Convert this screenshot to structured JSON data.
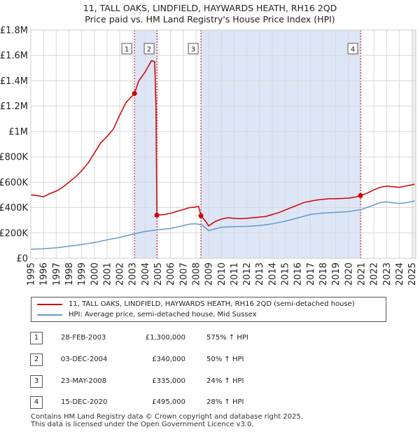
{
  "title_line1": "11, TALL OAKS, LINDFIELD, HAYWARDS HEATH, RH16 2QD",
  "title_line2": "Price paid vs. HM Land Registry's House Price Index (HPI)",
  "chart_data": {
    "type": "line",
    "title": "11, TALL OAKS, LINDFIELD, HAYWARDS HEATH, RH16 2QD",
    "subtitle": "Price paid vs. HM Land Registry's House Price Index (HPI)",
    "xlim": [
      1995,
      2025.3
    ],
    "ylim": [
      0,
      1800000
    ],
    "x_ticks": [
      "1995",
      "1996",
      "1997",
      "1998",
      "1999",
      "2000",
      "2001",
      "2002",
      "2003",
      "2004",
      "2005",
      "2006",
      "2007",
      "2008",
      "2009",
      "2010",
      "2011",
      "2012",
      "2013",
      "2014",
      "2015",
      "2016",
      "2017",
      "2018",
      "2019",
      "2020",
      "2021",
      "2022",
      "2023",
      "2024",
      "2025"
    ],
    "y_ticks": [
      {
        "value": 0,
        "label": "£0"
      },
      {
        "value": 200000,
        "label": "£200K"
      },
      {
        "value": 400000,
        "label": "£400K"
      },
      {
        "value": 600000,
        "label": "£600K"
      },
      {
        "value": 800000,
        "label": "£800K"
      },
      {
        "value": 1000000,
        "label": "£1M"
      },
      {
        "value": 1200000,
        "label": "£1.2M"
      },
      {
        "value": 1400000,
        "label": "£1.4M"
      },
      {
        "value": 1600000,
        "label": "£1.6M"
      },
      {
        "value": 1800000,
        "label": "£1.8M"
      }
    ],
    "grid": true,
    "series": [
      {
        "name": "11, TALL OAKS, LINDFIELD, HAYWARDS HEATH, RH16 2QD (semi-detached house)",
        "color": "#cc0000",
        "points": [
          [
            1995.0,
            500000
          ],
          [
            1995.5,
            495000
          ],
          [
            1996.0,
            485000
          ],
          [
            1996.5,
            510000
          ],
          [
            1997.0,
            530000
          ],
          [
            1997.5,
            560000
          ],
          [
            1998.0,
            600000
          ],
          [
            1998.5,
            640000
          ],
          [
            1999.0,
            690000
          ],
          [
            1999.5,
            750000
          ],
          [
            2000.0,
            830000
          ],
          [
            2000.5,
            910000
          ],
          [
            2001.0,
            960000
          ],
          [
            2001.5,
            1020000
          ],
          [
            2002.0,
            1130000
          ],
          [
            2002.5,
            1230000
          ],
          [
            2003.16,
            1300000
          ],
          [
            2003.5,
            1400000
          ],
          [
            2004.0,
            1470000
          ],
          [
            2004.5,
            1560000
          ],
          [
            2004.75,
            1550000
          ],
          [
            2004.85,
            1200000
          ],
          [
            2004.92,
            340000
          ],
          [
            2005.5,
            345000
          ],
          [
            2006.0,
            355000
          ],
          [
            2006.5,
            370000
          ],
          [
            2007.0,
            385000
          ],
          [
            2007.5,
            400000
          ],
          [
            2008.0,
            405000
          ],
          [
            2008.2,
            410000
          ],
          [
            2008.39,
            335000
          ],
          [
            2008.7,
            300000
          ],
          [
            2009.0,
            255000
          ],
          [
            2009.5,
            290000
          ],
          [
            2010.0,
            310000
          ],
          [
            2010.5,
            320000
          ],
          [
            2011.0,
            315000
          ],
          [
            2011.5,
            312000
          ],
          [
            2012.0,
            315000
          ],
          [
            2012.5,
            320000
          ],
          [
            2013.0,
            325000
          ],
          [
            2013.5,
            330000
          ],
          [
            2014.0,
            345000
          ],
          [
            2014.5,
            360000
          ],
          [
            2015.0,
            380000
          ],
          [
            2015.5,
            400000
          ],
          [
            2016.0,
            420000
          ],
          [
            2016.5,
            440000
          ],
          [
            2017.0,
            450000
          ],
          [
            2017.5,
            460000
          ],
          [
            2018.0,
            465000
          ],
          [
            2018.5,
            470000
          ],
          [
            2019.0,
            470000
          ],
          [
            2019.5,
            472000
          ],
          [
            2020.0,
            475000
          ],
          [
            2020.5,
            482000
          ],
          [
            2020.95,
            495000
          ],
          [
            2021.5,
            515000
          ],
          [
            2022.0,
            540000
          ],
          [
            2022.5,
            560000
          ],
          [
            2023.0,
            570000
          ],
          [
            2023.5,
            565000
          ],
          [
            2024.0,
            560000
          ],
          [
            2024.5,
            570000
          ],
          [
            2025.0,
            580000
          ],
          [
            2025.2,
            585000
          ]
        ]
      },
      {
        "name": "HPI: Average price, semi-detached house, Mid Sussex",
        "color": "#6699cc",
        "points": [
          [
            1995.0,
            72000
          ],
          [
            1996.0,
            75000
          ],
          [
            1997.0,
            83000
          ],
          [
            1998.0,
            95000
          ],
          [
            1999.0,
            108000
          ],
          [
            2000.0,
            125000
          ],
          [
            2001.0,
            145000
          ],
          [
            2002.0,
            165000
          ],
          [
            2003.0,
            190000
          ],
          [
            2004.0,
            212000
          ],
          [
            2005.0,
            225000
          ],
          [
            2006.0,
            235000
          ],
          [
            2007.0,
            258000
          ],
          [
            2007.5,
            270000
          ],
          [
            2008.0,
            272000
          ],
          [
            2008.5,
            262000
          ],
          [
            2009.0,
            218000
          ],
          [
            2009.5,
            232000
          ],
          [
            2010.0,
            245000
          ],
          [
            2011.0,
            250000
          ],
          [
            2012.0,
            252000
          ],
          [
            2013.0,
            258000
          ],
          [
            2014.0,
            272000
          ],
          [
            2015.0,
            292000
          ],
          [
            2016.0,
            318000
          ],
          [
            2017.0,
            345000
          ],
          [
            2018.0,
            358000
          ],
          [
            2019.0,
            362000
          ],
          [
            2020.0,
            368000
          ],
          [
            2021.0,
            385000
          ],
          [
            2022.0,
            420000
          ],
          [
            2022.5,
            440000
          ],
          [
            2023.0,
            445000
          ],
          [
            2023.5,
            438000
          ],
          [
            2024.0,
            433000
          ],
          [
            2024.5,
            438000
          ],
          [
            2025.0,
            448000
          ],
          [
            2025.2,
            452000
          ]
        ]
      }
    ],
    "sales": [
      {
        "id": "1",
        "x": 2003.16,
        "y": 1300000
      },
      {
        "id": "2",
        "x": 2004.92,
        "y": 340000
      },
      {
        "id": "3",
        "x": 2008.39,
        "y": 335000
      },
      {
        "id": "4",
        "x": 2020.95,
        "y": 495000
      }
    ]
  },
  "legend": {
    "property_label": "11, TALL OAKS, LINDFIELD, HAYWARDS HEATH, RH16 2QD (semi-detached house)",
    "hpi_label": "HPI: Average price, semi-detached house, Mid Sussex",
    "property_color": "#cc0000",
    "hpi_color": "#6699cc"
  },
  "transactions": [
    {
      "id": "1",
      "date": "28-FEB-2003",
      "price": "£1,300,000",
      "hpi": "575% ↑ HPI"
    },
    {
      "id": "2",
      "date": "03-DEC-2004",
      "price": "£340,000",
      "hpi": "50% ↑ HPI"
    },
    {
      "id": "3",
      "date": "23-MAY-2008",
      "price": "£335,000",
      "hpi": "24% ↑ HPI"
    },
    {
      "id": "4",
      "date": "15-DEC-2020",
      "price": "£495,000",
      "hpi": "28% ↑ HPI"
    }
  ],
  "footer": {
    "line1": "Contains HM Land Registry data © Crown copyright and database right 2025.",
    "line2": "This data is licensed under the Open Government Licence v3.0."
  }
}
